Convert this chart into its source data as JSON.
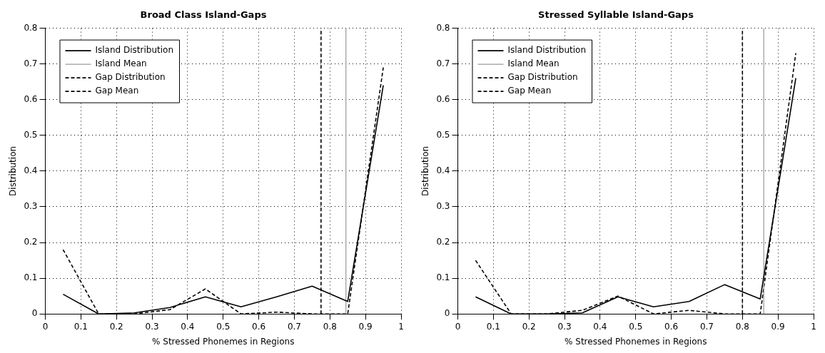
{
  "chart_data": [
    {
      "type": "line",
      "title": "Broad Class Island-Gaps",
      "xlabel": "% Stressed Phonemes in Regions",
      "ylabel": "Distribution",
      "xlim": [
        0,
        1
      ],
      "xticks": [
        0,
        0.1,
        0.2,
        0.3,
        0.4,
        0.5,
        0.6,
        0.7,
        0.8,
        0.9,
        1
      ],
      "ylim": [
        0,
        0.8
      ],
      "yticks": [
        0,
        0.1,
        0.2,
        0.3,
        0.4,
        0.5,
        0.6,
        0.7,
        0.8
      ],
      "grid": true,
      "legend": "top left",
      "series": [
        {
          "name": "Island Distribution",
          "color": "#000000",
          "line_style": "solid",
          "x": [
            0.05,
            0.15,
            0.25,
            0.35,
            0.45,
            0.55,
            0.65,
            0.75,
            0.85,
            0.95
          ],
          "values": [
            0.055,
            0.0,
            0.003,
            0.018,
            0.048,
            0.02,
            0.048,
            0.078,
            0.035,
            0.64
          ]
        },
        {
          "name": "Island Mean",
          "color": "#999999",
          "line_style": "solid",
          "x": [
            0.845,
            0.845
          ],
          "values": [
            0,
            0.8
          ]
        },
        {
          "name": "Gap Distribution",
          "color": "#000000",
          "line_style": "dashed",
          "x": [
            0.05,
            0.15,
            0.25,
            0.35,
            0.45,
            0.55,
            0.65,
            0.75,
            0.85,
            0.95
          ],
          "values": [
            0.18,
            0.0,
            0.0,
            0.012,
            0.07,
            0.0,
            0.005,
            0.0,
            0.0,
            0.69
          ]
        },
        {
          "name": "Gap Mean",
          "color": "#000000",
          "line_style": "dashed",
          "x": [
            0.775,
            0.775
          ],
          "values": [
            0,
            0.8
          ]
        }
      ]
    },
    {
      "type": "line",
      "title": "Stressed Syllable Island-Gaps",
      "xlabel": "% Stressed Phonemes in Regions",
      "ylabel": "Distribution",
      "xlim": [
        0,
        1
      ],
      "xticks": [
        0,
        0.1,
        0.2,
        0.3,
        0.4,
        0.5,
        0.6,
        0.7,
        0.8,
        0.9,
        1
      ],
      "ylim": [
        0,
        0.8
      ],
      "yticks": [
        0,
        0.1,
        0.2,
        0.3,
        0.4,
        0.5,
        0.6,
        0.7,
        0.8
      ],
      "grid": true,
      "legend": "top left",
      "series": [
        {
          "name": "Island Distribution",
          "color": "#000000",
          "line_style": "solid",
          "x": [
            0.05,
            0.15,
            0.25,
            0.35,
            0.45,
            0.55,
            0.65,
            0.75,
            0.85,
            0.95
          ],
          "values": [
            0.048,
            0.0,
            0.0,
            0.003,
            0.048,
            0.02,
            0.035,
            0.082,
            0.042,
            0.66
          ]
        },
        {
          "name": "Island Mean",
          "color": "#999999",
          "line_style": "solid",
          "x": [
            0.86,
            0.86
          ],
          "values": [
            0,
            0.8
          ]
        },
        {
          "name": "Gap Distribution",
          "color": "#000000",
          "line_style": "dashed",
          "x": [
            0.05,
            0.15,
            0.25,
            0.35,
            0.45,
            0.55,
            0.65,
            0.75,
            0.85,
            0.95
          ],
          "values": [
            0.15,
            0.0,
            0.0,
            0.01,
            0.05,
            0.0,
            0.01,
            0.0,
            0.0,
            0.73
          ]
        },
        {
          "name": "Gap Mean",
          "color": "#000000",
          "line_style": "dashed",
          "x": [
            0.8,
            0.8
          ],
          "values": [
            0,
            0.8
          ]
        }
      ]
    }
  ]
}
